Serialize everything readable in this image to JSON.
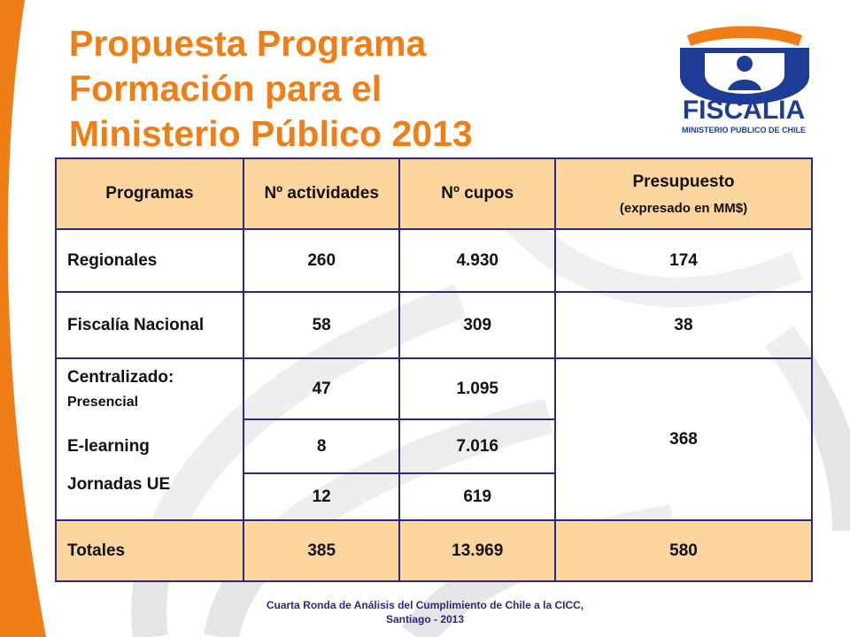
{
  "slide": {
    "title_lines": [
      "Propuesta Programa",
      "Formación para el",
      "Ministerio Público 2013"
    ],
    "logo": {
      "name": "FISCALIA",
      "subtitle": "MINISTERIO PUBLICO DE CHILE",
      "primary_color": "#1e3c96",
      "accent_color": "#f07d16"
    },
    "colors": {
      "title": "#f07d16",
      "header_fill": "#fdd59f",
      "border": "#2b2a78",
      "side_stripe": "#f07d16"
    }
  },
  "table": {
    "headers": {
      "programas": "Programas",
      "actividades": "Nº actividades",
      "cupos": "Nº cupos",
      "presupuesto": "Presupuesto",
      "presupuesto_unit": "(expresado en MM$)"
    },
    "rows": {
      "regionales": {
        "label": "Regionales",
        "actividades": "260",
        "cupos": "4.930",
        "presupuesto": "174"
      },
      "fiscalia": {
        "label": "Fiscalía Nacional",
        "actividades": "58",
        "cupos": "309",
        "presupuesto": "38"
      },
      "centralizado": {
        "label": "Centralizado:",
        "presencial": {
          "label": "Presencial",
          "actividades": "47",
          "cupos": "1.095"
        },
        "elearning": {
          "label": "E-learning",
          "actividades": "8",
          "cupos": "7.016"
        },
        "jornadas": {
          "label": "Jornadas UE",
          "actividades": "12",
          "cupos": "619"
        },
        "presupuesto": "368"
      },
      "totales": {
        "label": "Totales",
        "actividades": "385",
        "cupos": "13.969",
        "presupuesto": "580"
      }
    }
  },
  "footer": {
    "line1": "Cuarta Ronda de Análisis del Cumplimiento de Chile a la CICC,",
    "line2": "Santiago - 2013"
  }
}
